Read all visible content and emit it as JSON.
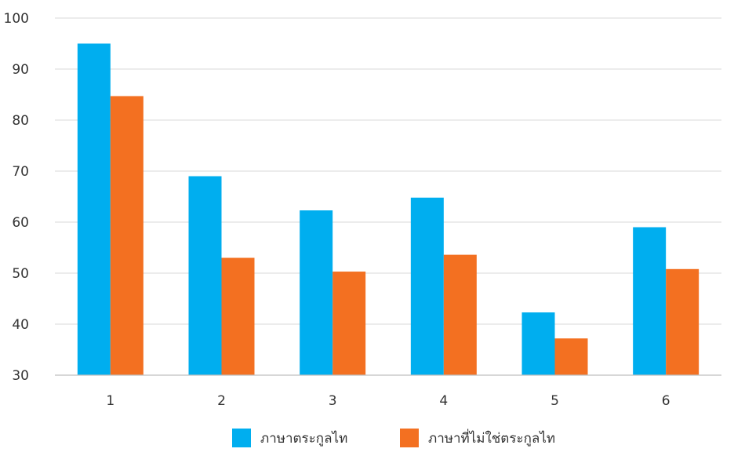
{
  "chart_data": {
    "type": "bar",
    "categories": [
      "1",
      "2",
      "3",
      "4",
      "5",
      "6"
    ],
    "series": [
      {
        "name": "ภาษาตระกูลไท",
        "color": "#00AEEF",
        "values": [
          95,
          69,
          62.3,
          64.8,
          42.3,
          59
        ]
      },
      {
        "name": "ภาษาที่ไม่ใช่ตระกูลไท",
        "color": "#F37021",
        "values": [
          84.7,
          53,
          50.3,
          53.6,
          37.2,
          50.8
        ]
      }
    ],
    "ylim": [
      30,
      100
    ],
    "yticks": [
      30,
      40,
      50,
      60,
      70,
      80,
      90,
      100
    ],
    "grid": true,
    "legend_position": "bottom",
    "title": "",
    "xlabel": "",
    "ylabel": ""
  }
}
